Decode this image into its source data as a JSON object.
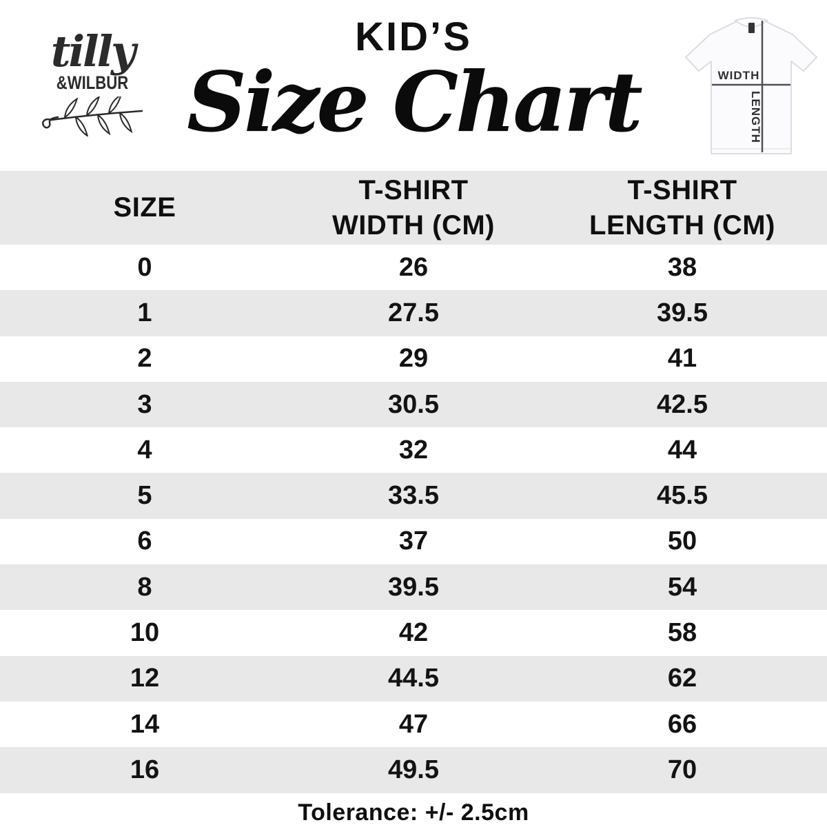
{
  "brand": {
    "script": "tilly",
    "caps": "&WILBUR"
  },
  "header": {
    "kicker": "KID’S",
    "title": "Size Chart"
  },
  "diagram": {
    "width_label": "WIDTH",
    "length_label": "LENGTH"
  },
  "table": {
    "headers": [
      {
        "line1": "SIZE",
        "line2": ""
      },
      {
        "line1": "T-SHIRT",
        "line2": "WIDTH (CM)"
      },
      {
        "line1": "T-SHIRT",
        "line2": "LENGTH (CM)"
      }
    ],
    "rows": [
      {
        "size": "0",
        "width": "26",
        "length": "38"
      },
      {
        "size": "1",
        "width": "27.5",
        "length": "39.5"
      },
      {
        "size": "2",
        "width": "29",
        "length": "41"
      },
      {
        "size": "3",
        "width": "30.5",
        "length": "42.5"
      },
      {
        "size": "4",
        "width": "32",
        "length": "44"
      },
      {
        "size": "5",
        "width": "33.5",
        "length": "45.5"
      },
      {
        "size": "6",
        "width": "37",
        "length": "50"
      },
      {
        "size": "8",
        "width": "39.5",
        "length": "54"
      },
      {
        "size": "10",
        "width": "42",
        "length": "58"
      },
      {
        "size": "12",
        "width": "44.5",
        "length": "62"
      },
      {
        "size": "14",
        "width": "47",
        "length": "66"
      },
      {
        "size": "16",
        "width": "49.5",
        "length": "70"
      }
    ]
  },
  "footer": {
    "tolerance": "Tolerance: +/- 2.5cm"
  },
  "colors": {
    "stripe": "#e8e8e9",
    "text": "#0f0f0f",
    "diagram_line": "#4f4f55"
  },
  "chart_data": {
    "type": "table",
    "title": "KID’S Size Chart",
    "columns": [
      "SIZE",
      "T-SHIRT WIDTH (CM)",
      "T-SHIRT LENGTH (CM)"
    ],
    "rows": [
      [
        0,
        26,
        38
      ],
      [
        1,
        27.5,
        39.5
      ],
      [
        2,
        29,
        41
      ],
      [
        3,
        30.5,
        42.5
      ],
      [
        4,
        32,
        44
      ],
      [
        5,
        33.5,
        45.5
      ],
      [
        6,
        37,
        50
      ],
      [
        8,
        39.5,
        54
      ],
      [
        10,
        42,
        58
      ],
      [
        12,
        44.5,
        62
      ],
      [
        14,
        47,
        66
      ],
      [
        16,
        49.5,
        70
      ]
    ],
    "note": "Tolerance: +/- 2.5cm",
    "layout_hints": {
      "striped_rows": true,
      "stripe_color": "#e8e8e9",
      "header_background": "#e8e8e9"
    }
  }
}
